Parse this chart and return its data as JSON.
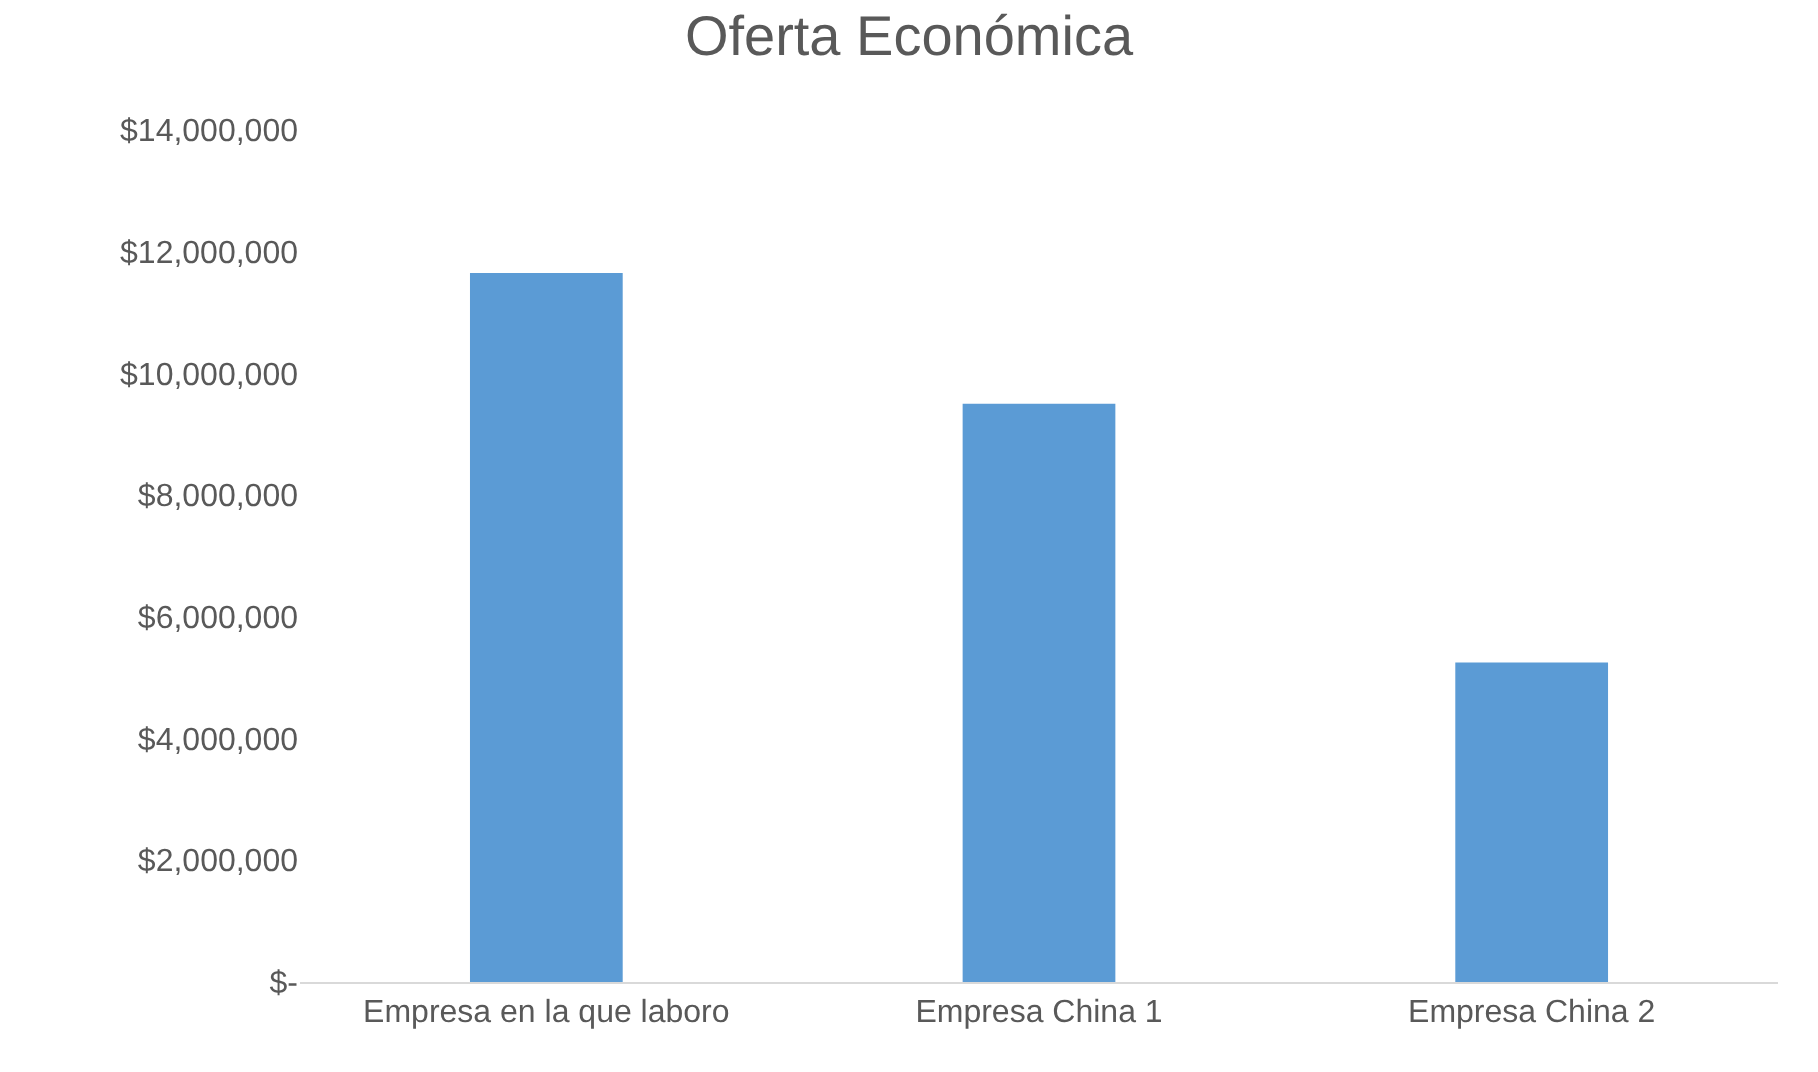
{
  "chart_data": {
    "type": "bar",
    "title": "Oferta Económica",
    "categories": [
      "Empresa en la que laboro",
      "Empresa China 1",
      "Empresa China 2"
    ],
    "values": [
      11650000,
      9500000,
      5250000
    ],
    "color": "#5b9bd5",
    "ylim": [
      0,
      14000000
    ],
    "yticks": [
      {
        "value": 0,
        "label": "$-"
      },
      {
        "value": 2000000,
        "label": "$2,000,000"
      },
      {
        "value": 4000000,
        "label": "$4,000,000"
      },
      {
        "value": 6000000,
        "label": "$6,000,000"
      },
      {
        "value": 8000000,
        "label": "$8,000,000"
      },
      {
        "value": 10000000,
        "label": "$10,000,000"
      },
      {
        "value": 12000000,
        "label": "$12,000,000"
      },
      {
        "value": 14000000,
        "label": "$14,000,000"
      }
    ],
    "grid": false
  }
}
